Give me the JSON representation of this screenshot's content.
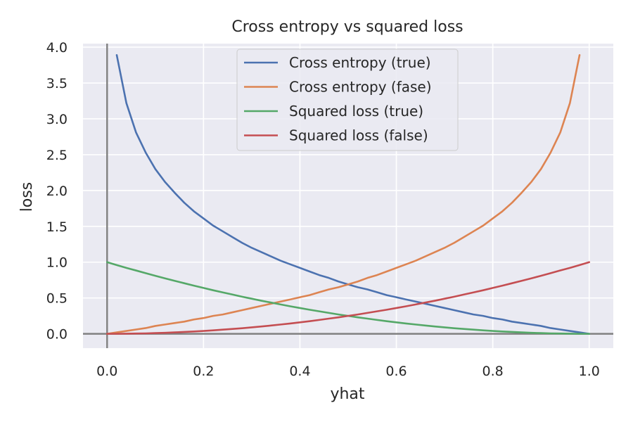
{
  "chart_data": {
    "type": "line",
    "title": "Cross entropy vs squared loss",
    "xlabel": "yhat",
    "ylabel": "loss",
    "xlim": [
      -0.05,
      1.05
    ],
    "ylim": [
      -0.2,
      4.05
    ],
    "xticks": [
      0.0,
      0.2,
      0.4,
      0.6,
      0.8,
      1.0
    ],
    "xtick_labels": [
      "0.0",
      "0.2",
      "0.4",
      "0.6",
      "0.8",
      "1.0"
    ],
    "yticks": [
      0.0,
      0.5,
      1.0,
      1.5,
      2.0,
      2.5,
      3.0,
      3.5,
      4.0
    ],
    "ytick_labels": [
      "0.0",
      "0.5",
      "1.0",
      "1.5",
      "2.0",
      "2.5",
      "3.0",
      "3.5",
      "4.0"
    ],
    "grid": true,
    "legend_position": "top-center",
    "reference_lines": {
      "x": 0,
      "y": 0,
      "color": "#808080"
    },
    "series": [
      {
        "name": "Cross entropy (true)",
        "color": "#4c72b0",
        "x": [
          0.02,
          0.04,
          0.06,
          0.08,
          0.1,
          0.12,
          0.14,
          0.16,
          0.18,
          0.2,
          0.22,
          0.24,
          0.26,
          0.28,
          0.3,
          0.32,
          0.34,
          0.36,
          0.38,
          0.4,
          0.42,
          0.44,
          0.46,
          0.48,
          0.5,
          0.52,
          0.54,
          0.56,
          0.58,
          0.6,
          0.62,
          0.64,
          0.66,
          0.68,
          0.7,
          0.72,
          0.74,
          0.76,
          0.78,
          0.8,
          0.82,
          0.84,
          0.86,
          0.88,
          0.9,
          0.92,
          0.94,
          0.96,
          0.98,
          1.0
        ],
        "y": [
          3.89,
          3.22,
          2.81,
          2.53,
          2.3,
          2.12,
          1.97,
          1.83,
          1.71,
          1.61,
          1.51,
          1.43,
          1.35,
          1.27,
          1.2,
          1.14,
          1.08,
          1.02,
          0.97,
          0.92,
          0.87,
          0.82,
          0.78,
          0.73,
          0.69,
          0.65,
          0.62,
          0.58,
          0.54,
          0.51,
          0.48,
          0.45,
          0.42,
          0.39,
          0.36,
          0.33,
          0.3,
          0.27,
          0.25,
          0.22,
          0.2,
          0.17,
          0.15,
          0.13,
          0.11,
          0.08,
          0.06,
          0.04,
          0.02,
          0.0
        ]
      },
      {
        "name": "Cross entropy (fase)",
        "color": "#dd8452",
        "x": [
          0.0,
          0.02,
          0.04,
          0.06,
          0.08,
          0.1,
          0.12,
          0.14,
          0.16,
          0.18,
          0.2,
          0.22,
          0.24,
          0.26,
          0.28,
          0.3,
          0.32,
          0.34,
          0.36,
          0.38,
          0.4,
          0.42,
          0.44,
          0.46,
          0.48,
          0.5,
          0.52,
          0.54,
          0.56,
          0.58,
          0.6,
          0.62,
          0.64,
          0.66,
          0.68,
          0.7,
          0.72,
          0.74,
          0.76,
          0.78,
          0.8,
          0.82,
          0.84,
          0.86,
          0.88,
          0.9,
          0.92,
          0.94,
          0.96,
          0.98
        ],
        "y": [
          0.0,
          0.02,
          0.04,
          0.06,
          0.08,
          0.11,
          0.13,
          0.15,
          0.17,
          0.2,
          0.22,
          0.25,
          0.27,
          0.3,
          0.33,
          0.36,
          0.39,
          0.42,
          0.45,
          0.48,
          0.51,
          0.54,
          0.58,
          0.62,
          0.65,
          0.69,
          0.73,
          0.78,
          0.82,
          0.87,
          0.92,
          0.97,
          1.02,
          1.08,
          1.14,
          1.2,
          1.27,
          1.35,
          1.43,
          1.51,
          1.61,
          1.71,
          1.83,
          1.97,
          2.12,
          2.3,
          2.53,
          2.81,
          3.22,
          3.89
        ]
      },
      {
        "name": "Squared loss (true)",
        "color": "#55a868",
        "x": [
          0.0,
          0.02,
          0.04,
          0.06,
          0.08,
          0.1,
          0.12,
          0.14,
          0.16,
          0.18,
          0.2,
          0.22,
          0.24,
          0.26,
          0.28,
          0.3,
          0.32,
          0.34,
          0.36,
          0.38,
          0.4,
          0.42,
          0.44,
          0.46,
          0.48,
          0.5,
          0.52,
          0.54,
          0.56,
          0.58,
          0.6,
          0.62,
          0.64,
          0.66,
          0.68,
          0.7,
          0.72,
          0.74,
          0.76,
          0.78,
          0.8,
          0.82,
          0.84,
          0.86,
          0.88,
          0.9,
          0.92,
          0.94,
          0.96,
          0.98,
          1.0
        ],
        "y": [
          1.0,
          0.96,
          0.92,
          0.884,
          0.846,
          0.81,
          0.774,
          0.74,
          0.706,
          0.672,
          0.64,
          0.608,
          0.578,
          0.548,
          0.518,
          0.49,
          0.462,
          0.436,
          0.41,
          0.384,
          0.36,
          0.336,
          0.314,
          0.292,
          0.27,
          0.25,
          0.23,
          0.212,
          0.194,
          0.176,
          0.16,
          0.144,
          0.13,
          0.116,
          0.102,
          0.09,
          0.078,
          0.068,
          0.058,
          0.048,
          0.04,
          0.032,
          0.026,
          0.02,
          0.014,
          0.01,
          0.006,
          0.004,
          0.002,
          0.0,
          0.0
        ]
      },
      {
        "name": "Squared loss (false)",
        "color": "#c44e52",
        "x": [
          0.0,
          0.02,
          0.04,
          0.06,
          0.08,
          0.1,
          0.12,
          0.14,
          0.16,
          0.18,
          0.2,
          0.22,
          0.24,
          0.26,
          0.28,
          0.3,
          0.32,
          0.34,
          0.36,
          0.38,
          0.4,
          0.42,
          0.44,
          0.46,
          0.48,
          0.5,
          0.52,
          0.54,
          0.56,
          0.58,
          0.6,
          0.62,
          0.64,
          0.66,
          0.68,
          0.7,
          0.72,
          0.74,
          0.76,
          0.78,
          0.8,
          0.82,
          0.84,
          0.86,
          0.88,
          0.9,
          0.92,
          0.94,
          0.96,
          0.98,
          1.0
        ],
        "y": [
          0.0,
          0.0,
          0.002,
          0.004,
          0.006,
          0.01,
          0.014,
          0.02,
          0.026,
          0.032,
          0.04,
          0.048,
          0.058,
          0.068,
          0.078,
          0.09,
          0.102,
          0.116,
          0.13,
          0.144,
          0.16,
          0.176,
          0.194,
          0.212,
          0.23,
          0.25,
          0.27,
          0.292,
          0.314,
          0.336,
          0.36,
          0.384,
          0.41,
          0.436,
          0.462,
          0.49,
          0.518,
          0.548,
          0.578,
          0.608,
          0.64,
          0.672,
          0.706,
          0.74,
          0.774,
          0.81,
          0.846,
          0.884,
          0.92,
          0.96,
          1.0
        ]
      }
    ]
  }
}
